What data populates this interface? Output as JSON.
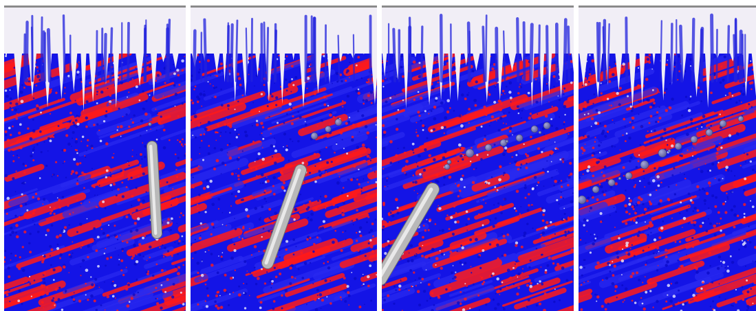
{
  "figure": {
    "panel_count": 4,
    "panels": [
      {
        "index": 1,
        "state": "cylinder-near-vertical",
        "bubbles": 1
      },
      {
        "index": 2,
        "state": "cylinder-tilted",
        "bubbles": 3
      },
      {
        "index": 3,
        "state": "cylinder-leaving-lower-left",
        "bubbles": 10
      },
      {
        "index": 4,
        "state": "cylinder-gone-bubble-trail",
        "bubbles": 13
      }
    ]
  },
  "colors": {
    "fluid_red": "#ff1a1a",
    "fluid_blue": "#1414e6",
    "foam_white": "#f1eef6",
    "cylinder_gray": "#b9b9b9",
    "bubble_purple": "#5a5a9a",
    "top_bar_gray": "#8a8a8a",
    "separator_white": "#ffffff"
  }
}
